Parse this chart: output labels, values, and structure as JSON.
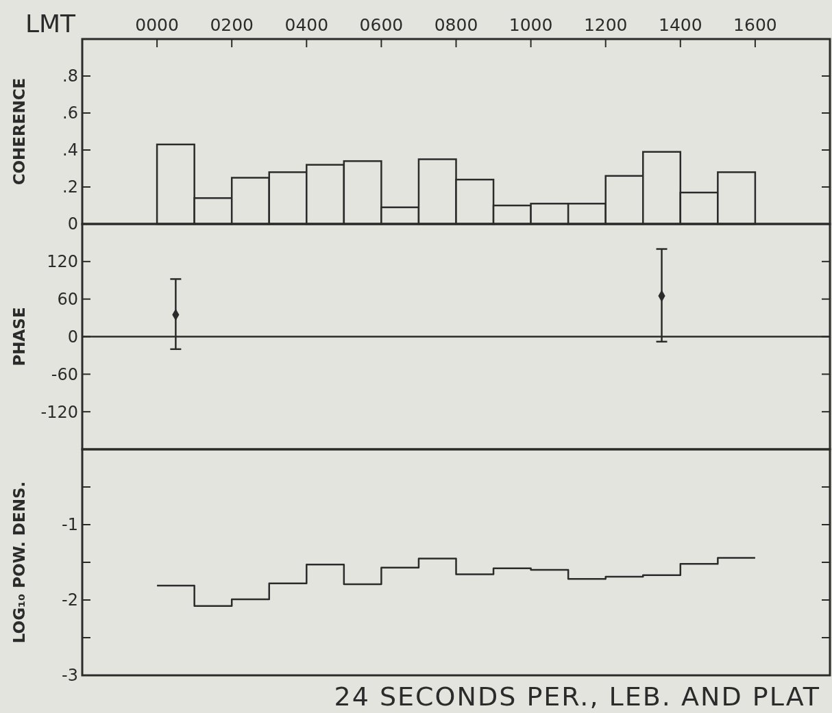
{
  "chart_data": [
    {
      "type": "histogram",
      "ylabel": "COHERENCE",
      "xlabel": "LMT",
      "bins": [
        0,
        100,
        200,
        300,
        400,
        500,
        600,
        700,
        800,
        900,
        1000,
        1100,
        1200,
        1300,
        1400,
        1500,
        1600
      ],
      "values": [
        0.43,
        0.14,
        0.25,
        0.28,
        0.32,
        0.34,
        0.09,
        0.35,
        0.24,
        0.1,
        0.11,
        0.11,
        0.26,
        0.39,
        0.17,
        0.28
      ],
      "color": "#2b2b2b",
      "xlim": [
        -200,
        1800
      ],
      "ylim": [
        0,
        1
      ],
      "yticks": [
        0,
        {
          "value": 0.2,
          "label": ".2"
        },
        {
          "value": 0.4,
          "label": ".4"
        },
        {
          "value": 0.6,
          "label": ".6"
        },
        {
          "value": 0.8,
          "label": ".8"
        }
      ],
      "xticks": [
        {
          "value": 0,
          "label": "0000"
        },
        {
          "value": 200,
          "label": "0200"
        },
        {
          "value": 400,
          "label": "0400"
        },
        {
          "value": 600,
          "label": "0600"
        },
        {
          "value": 800,
          "label": "0800"
        },
        {
          "value": 1000,
          "label": "1000"
        },
        {
          "value": 1200,
          "label": "1200"
        },
        {
          "value": 1400,
          "label": "1400"
        },
        {
          "value": 1600,
          "label": "1600"
        }
      ]
    },
    {
      "type": "scatter",
      "ylabel": "PHASE",
      "x": [
        50,
        1350
      ],
      "values": [
        35,
        65
      ],
      "errors": [
        [
          -20,
          92
        ],
        [
          -8,
          140
        ]
      ],
      "marker": "diamond",
      "color": "#2b2b2b",
      "xlim": [
        -200,
        1800
      ],
      "ylim": [
        -180,
        180
      ],
      "yticks": [
        -120,
        -60,
        0,
        60,
        120
      ],
      "ref_lines": [
        {
          "axis": "y",
          "value": 0
        }
      ],
      "tick_labels": "y"
    },
    {
      "type": "step",
      "ylabel": "LOG₁₀ POW. DENS.",
      "xlabel": "24 SECONDS PER., LEB. AND PLAT",
      "x": [
        0,
        100,
        200,
        300,
        400,
        500,
        600,
        700,
        800,
        900,
        1000,
        1100,
        1200,
        1300,
        1400,
        1500,
        1600
      ],
      "values": [
        -1.81,
        -2.08,
        -1.99,
        -1.78,
        -1.53,
        -1.79,
        -1.57,
        -1.45,
        -1.66,
        -1.58,
        -1.6,
        -1.72,
        -1.69,
        -1.67,
        -1.52,
        -1.44,
        -1.44
      ],
      "color": "#2b2b2b",
      "xlim": [
        -200,
        1800
      ],
      "ylim": [
        -3,
        0
      ],
      "yticks": [
        {
          "value": -0.5,
          "label": null
        },
        -1,
        {
          "value": -1.5,
          "label": null
        },
        -2,
        {
          "value": -2.5,
          "label": null
        },
        -3
      ],
      "tick_labels": "y"
    }
  ]
}
